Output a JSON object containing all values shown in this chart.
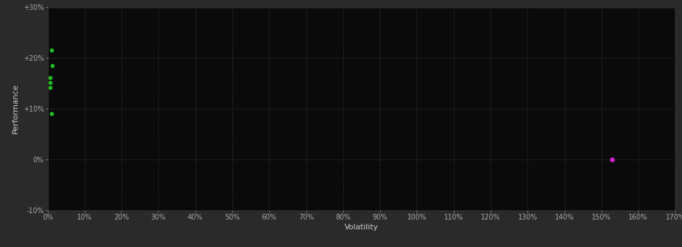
{
  "background_color": "#2a2a2a",
  "plot_bg_color": "#0a0a0a",
  "grid_color": "#444444",
  "xlabel": "Volatility",
  "ylabel": "Performance",
  "xlim": [
    0,
    170
  ],
  "ylim": [
    -10,
    30
  ],
  "xticks": [
    0,
    10,
    20,
    30,
    40,
    50,
    60,
    70,
    80,
    90,
    100,
    110,
    120,
    130,
    140,
    150,
    160,
    170
  ],
  "yticks": [
    -10,
    0,
    10,
    20,
    30
  ],
  "ytick_labels": [
    "-10%",
    "0%",
    "+10%",
    "+20%",
    "+30%"
  ],
  "xtick_labels": [
    "0%",
    "10%",
    "20%",
    "30%",
    "40%",
    "50%",
    "60%",
    "70%",
    "80%",
    "90%",
    "100%",
    "110%",
    "120%",
    "130%",
    "140%",
    "150%",
    "160%",
    "170%"
  ],
  "green_points": [
    [
      1.0,
      21.5
    ],
    [
      1.2,
      18.5
    ],
    [
      0.7,
      16.2
    ],
    [
      0.7,
      15.2
    ],
    [
      0.7,
      14.2
    ],
    [
      1.0,
      9.0
    ]
  ],
  "magenta_points": [
    [
      153.0,
      0.0
    ]
  ],
  "green_color": "#22bb22",
  "magenta_color": "#cc22cc",
  "font_color": "#cccccc",
  "tick_color": "#aaaaaa"
}
